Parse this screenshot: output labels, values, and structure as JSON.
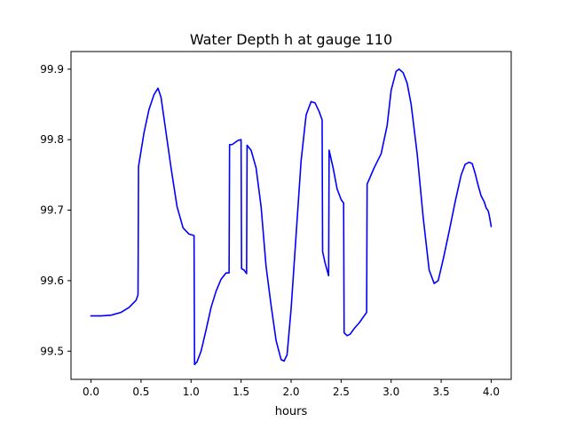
{
  "chart_data": {
    "type": "line",
    "title": "Water Depth h at gauge 110",
    "xlabel": "hours",
    "ylabel": "",
    "xlim": [
      -0.2,
      4.2
    ],
    "ylim": [
      99.46,
      99.925
    ],
    "xticks": [
      0.0,
      0.5,
      1.0,
      1.5,
      2.0,
      2.5,
      3.0,
      3.5,
      4.0
    ],
    "xtick_labels": [
      "0.0",
      "0.5",
      "1.0",
      "1.5",
      "2.0",
      "2.5",
      "3.0",
      "3.5",
      "4.0"
    ],
    "yticks": [
      99.5,
      99.6,
      99.7,
      99.8,
      99.9
    ],
    "ytick_labels": [
      "99.5",
      "99.6",
      "99.7",
      "99.8",
      "99.9"
    ],
    "grid": false,
    "series": [
      {
        "color": "#0000ff",
        "x": [
          0.0,
          0.1,
          0.2,
          0.3,
          0.38,
          0.45,
          0.47,
          0.475,
          0.49,
          0.53,
          0.58,
          0.63,
          0.67,
          0.7,
          0.74,
          0.8,
          0.86,
          0.92,
          0.98,
          1.03,
          1.035,
          1.06,
          1.1,
          1.15,
          1.2,
          1.25,
          1.3,
          1.35,
          1.38,
          1.385,
          1.41,
          1.44,
          1.47,
          1.5,
          1.505,
          1.53,
          1.555,
          1.56,
          1.6,
          1.65,
          1.7,
          1.75,
          1.8,
          1.85,
          1.9,
          1.93,
          1.96,
          2.0,
          2.05,
          2.1,
          2.15,
          2.2,
          2.24,
          2.28,
          2.31,
          2.315,
          2.34,
          2.375,
          2.38,
          2.42,
          2.46,
          2.5,
          2.525,
          2.53,
          2.56,
          2.59,
          2.63,
          2.68,
          2.73,
          2.755,
          2.76,
          2.83,
          2.9,
          2.96,
          3.0,
          3.05,
          3.08,
          3.12,
          3.16,
          3.2,
          3.26,
          3.32,
          3.38,
          3.43,
          3.47,
          3.52,
          3.58,
          3.64,
          3.7,
          3.74,
          3.78,
          3.81,
          3.84,
          3.87,
          3.9,
          3.93,
          3.95,
          3.97,
          3.98,
          4.0
        ],
        "y": [
          99.55,
          99.55,
          99.551,
          99.555,
          99.562,
          99.572,
          99.58,
          99.762,
          99.775,
          99.81,
          99.843,
          99.864,
          99.873,
          99.86,
          99.82,
          99.76,
          99.705,
          99.675,
          99.666,
          99.664,
          99.481,
          99.485,
          99.5,
          99.53,
          99.562,
          99.585,
          99.602,
          99.611,
          99.611,
          99.793,
          99.793,
          99.796,
          99.799,
          99.8,
          99.617,
          99.615,
          99.61,
          99.792,
          99.785,
          99.76,
          99.705,
          99.62,
          99.565,
          99.515,
          99.488,
          99.486,
          99.495,
          99.56,
          99.665,
          99.77,
          99.835,
          99.854,
          99.852,
          99.84,
          99.828,
          99.641,
          99.625,
          99.607,
          99.785,
          99.76,
          99.73,
          99.715,
          99.71,
          99.526,
          99.522,
          99.524,
          99.532,
          99.54,
          99.55,
          99.555,
          99.737,
          99.76,
          99.78,
          99.82,
          99.87,
          99.897,
          99.9,
          99.895,
          99.88,
          99.85,
          99.78,
          99.69,
          99.615,
          99.596,
          99.6,
          99.63,
          99.67,
          99.712,
          99.75,
          99.765,
          99.768,
          99.766,
          99.752,
          99.735,
          99.72,
          99.712,
          99.703,
          99.699,
          99.693,
          99.677
        ]
      }
    ]
  }
}
